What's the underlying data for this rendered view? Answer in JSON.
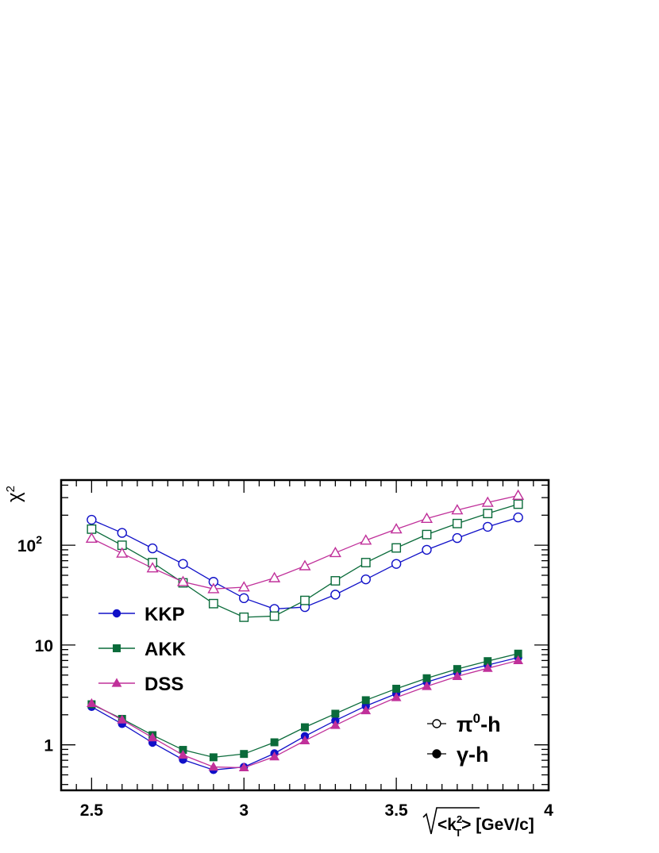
{
  "chart_data": {
    "type": "line",
    "ylabel": "χ",
    "ylabel_sup": "2",
    "xlabel": "<k",
    "xlabel_sup": "2",
    "xlabel_sub": "T",
    "xlabel_tail": "> [GeV/c]",
    "y_scale": "log",
    "xlim": [
      2.4,
      4.0
    ],
    "ylim": [
      0.35,
      450
    ],
    "x_ticks": [
      {
        "value": 2.5,
        "label": "2.5"
      },
      {
        "value": 3.0,
        "label": "3"
      },
      {
        "value": 3.5,
        "label": "3.5"
      },
      {
        "value": 4.0,
        "label": "4"
      }
    ],
    "y_ticks": [
      {
        "value": 1,
        "label": "1"
      },
      {
        "value": 10,
        "label": "10"
      },
      {
        "value": 100,
        "label": "10",
        "sup": "2"
      }
    ],
    "x": [
      2.5,
      2.6,
      2.7,
      2.8,
      2.9,
      3.0,
      3.1,
      3.2,
      3.3,
      3.4,
      3.5,
      3.6,
      3.7,
      3.8,
      3.9
    ],
    "series": [
      {
        "name": "KKP",
        "process": "π0-h",
        "marker": "circle",
        "filled": false,
        "color": "#1010c8",
        "values": [
          180,
          133,
          93,
          65,
          43,
          29.5,
          23,
          24,
          32,
          45.5,
          65,
          90,
          118,
          153,
          190
        ]
      },
      {
        "name": "AKK",
        "process": "π0-h",
        "marker": "square",
        "filled": false,
        "color": "#0a6b3a",
        "values": [
          145,
          100,
          67,
          42,
          26,
          19,
          19.5,
          28,
          44,
          67,
          94,
          128,
          165,
          208,
          258
        ]
      },
      {
        "name": "DSS",
        "process": "π0-h",
        "marker": "triangle",
        "filled": false,
        "color": "#c0309a",
        "values": [
          117,
          83,
          59,
          43,
          36.5,
          38,
          47,
          62,
          84,
          112,
          145,
          185,
          225,
          268,
          315
        ]
      },
      {
        "name": "KKP",
        "process": "γ-h",
        "marker": "circle",
        "filled": true,
        "color": "#1010c8",
        "values": [
          2.4,
          1.62,
          1.05,
          0.71,
          0.56,
          0.6,
          0.82,
          1.22,
          1.75,
          2.45,
          3.25,
          4.25,
          5.3,
          6.3,
          7.5
        ]
      },
      {
        "name": "AKK",
        "process": "γ-h",
        "marker": "square",
        "filled": true,
        "color": "#0a6b3a",
        "values": [
          2.55,
          1.82,
          1.25,
          0.89,
          0.75,
          0.81,
          1.06,
          1.5,
          2.05,
          2.8,
          3.65,
          4.65,
          5.75,
          6.9,
          8.2
        ]
      },
      {
        "name": "DSS",
        "process": "γ-h",
        "marker": "triangle",
        "filled": true,
        "color": "#c0309a",
        "values": [
          2.6,
          1.78,
          1.18,
          0.79,
          0.6,
          0.59,
          0.76,
          1.1,
          1.57,
          2.2,
          2.98,
          3.85,
          4.85,
          5.85,
          7.0
        ]
      }
    ],
    "legend_models": [
      {
        "label": "KKP",
        "marker": "circle",
        "color": "#1010c8"
      },
      {
        "label": "AKK",
        "marker": "square",
        "color": "#0a6b3a"
      },
      {
        "label": "DSS",
        "marker": "triangle",
        "color": "#c0309a"
      }
    ],
    "legend_models_position": "middle-left",
    "legend_process": [
      {
        "label": "π",
        "sup": "0",
        "tail": "-h",
        "filled": false
      },
      {
        "label": "γ-h",
        "filled": true
      }
    ],
    "legend_process_position": "bottom-right",
    "grid": false
  }
}
